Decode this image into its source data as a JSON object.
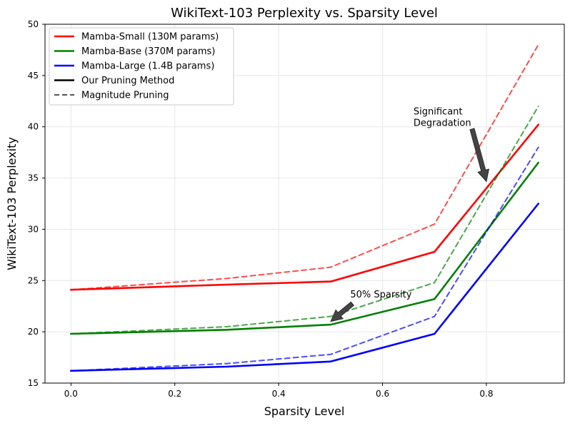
{
  "chart_data": {
    "type": "line",
    "title": "WikiText-103 Perplexity vs. Sparsity Level",
    "xlabel": "Sparsity Level",
    "ylabel": "WikiText-103 Perplexity",
    "xlim": [
      -0.05,
      0.95
    ],
    "ylim": [
      15,
      50
    ],
    "xticks": [
      "0.0",
      "0.2",
      "0.4",
      "0.6",
      "0.8"
    ],
    "yticks": [
      "15",
      "20",
      "25",
      "30",
      "35",
      "40",
      "45",
      "50"
    ],
    "grid": true,
    "legend_position": "top-left",
    "legend": [
      {
        "label": "Mamba-Small (130M params)",
        "color": "#ff0000",
        "style": "solid"
      },
      {
        "label": "Mamba-Base (370M params)",
        "color": "#008000",
        "style": "solid"
      },
      {
        "label": "Mamba-Large (1.4B params)",
        "color": "#0000ff",
        "style": "solid"
      },
      {
        "label": "Our Pruning Method",
        "color": "#000000",
        "style": "solid"
      },
      {
        "label": "Magnitude Pruning",
        "color": "#555555",
        "style": "dashed"
      }
    ],
    "x": [
      0.0,
      0.3,
      0.5,
      0.7,
      0.9
    ],
    "series": [
      {
        "name": "Mamba-Small (130M params) - Our Pruning Method",
        "color": "#ff0000",
        "style": "solid",
        "values": [
          24.1,
          24.6,
          24.9,
          27.8,
          40.2
        ]
      },
      {
        "name": "Mamba-Base (370M params) - Our Pruning Method",
        "color": "#008000",
        "style": "solid",
        "values": [
          19.8,
          20.2,
          20.7,
          23.2,
          36.5
        ]
      },
      {
        "name": "Mamba-Large (1.4B params) - Our Pruning Method",
        "color": "#0000ff",
        "style": "solid",
        "values": [
          16.2,
          16.6,
          17.1,
          19.8,
          32.5
        ]
      },
      {
        "name": "Mamba-Small (130M params) - Magnitude Pruning",
        "color": "#ff0000",
        "style": "dashed",
        "values": [
          24.1,
          25.2,
          26.3,
          30.5,
          48.0
        ]
      },
      {
        "name": "Mamba-Base (370M params) - Magnitude Pruning",
        "color": "#008000",
        "style": "dashed",
        "values": [
          19.8,
          20.5,
          21.5,
          24.8,
          42.0
        ]
      },
      {
        "name": "Mamba-Large (1.4B params) - Magnitude Pruning",
        "color": "#0000ff",
        "style": "dashed",
        "values": [
          16.2,
          16.9,
          17.8,
          21.5,
          38.0
        ]
      }
    ],
    "annotations": [
      {
        "text": "50% Sparsity",
        "point": [
          0.5,
          21.0
        ],
        "text_at": [
          0.52,
          23.3
        ]
      },
      {
        "text": "Significant\nDegradation",
        "point": [
          0.8,
          35.0
        ],
        "text_at": [
          0.65,
          40.0
        ]
      }
    ]
  }
}
